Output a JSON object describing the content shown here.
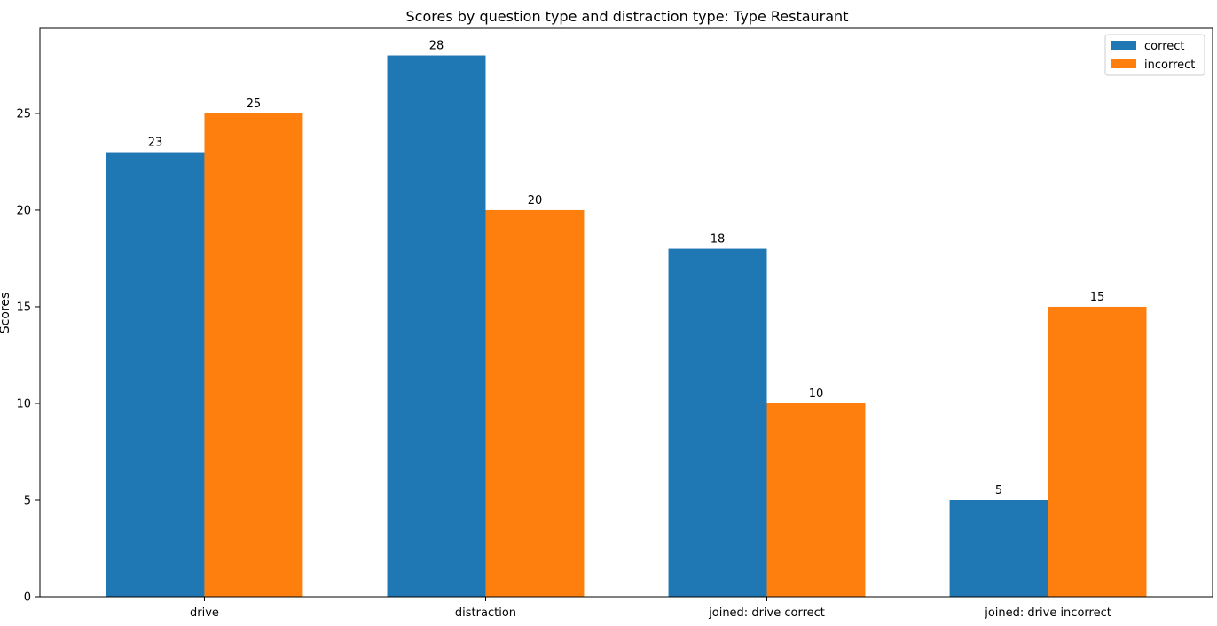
{
  "chart_data": {
    "type": "bar",
    "title": "Scores by question type and distraction type: Type Restaurant",
    "xlabel": "",
    "ylabel": "Scores",
    "categories": [
      "drive",
      "distraction",
      "joined: drive correct",
      "joined: drive incorrect"
    ],
    "series": [
      {
        "name": "correct",
        "values": [
          23,
          28,
          18,
          5
        ],
        "color": "#1f77b4"
      },
      {
        "name": "incorrect",
        "values": [
          25,
          20,
          10,
          15
        ],
        "color": "#ff7f0e"
      }
    ],
    "ylim": [
      0,
      29.4
    ],
    "yticks": [
      0,
      5,
      10,
      15,
      20,
      25
    ],
    "grid": false,
    "legend_position": "top-right",
    "data_labels": true
  }
}
